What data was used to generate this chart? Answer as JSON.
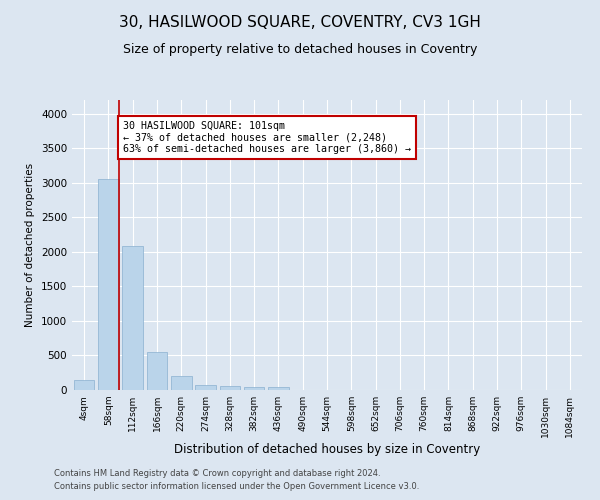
{
  "title1": "30, HASILWOOD SQUARE, COVENTRY, CV3 1GH",
  "title2": "Size of property relative to detached houses in Coventry",
  "xlabel": "Distribution of detached houses by size in Coventry",
  "ylabel": "Number of detached properties",
  "bar_categories": [
    "4sqm",
    "58sqm",
    "112sqm",
    "166sqm",
    "220sqm",
    "274sqm",
    "328sqm",
    "382sqm",
    "436sqm",
    "490sqm",
    "544sqm",
    "598sqm",
    "652sqm",
    "706sqm",
    "760sqm",
    "814sqm",
    "868sqm",
    "922sqm",
    "976sqm",
    "1030sqm",
    "1084sqm"
  ],
  "bar_values": [
    150,
    3050,
    2080,
    550,
    200,
    75,
    60,
    50,
    50,
    0,
    0,
    0,
    0,
    0,
    0,
    0,
    0,
    0,
    0,
    0,
    0
  ],
  "bar_color": "#bad4ea",
  "bar_edge_color": "#8ab0d0",
  "ylim": [
    0,
    4200
  ],
  "yticks": [
    0,
    500,
    1000,
    1500,
    2000,
    2500,
    3000,
    3500,
    4000
  ],
  "property_line_color": "#c00000",
  "annotation_text": "30 HASILWOOD SQUARE: 101sqm\n← 37% of detached houses are smaller (2,248)\n63% of semi-detached houses are larger (3,860) →",
  "annotation_box_color": "#c00000",
  "footer1": "Contains HM Land Registry data © Crown copyright and database right 2024.",
  "footer2": "Contains public sector information licensed under the Open Government Licence v3.0.",
  "bg_color": "#dce6f1",
  "grid_color": "#ffffff",
  "title1_fontsize": 11,
  "title2_fontsize": 9
}
